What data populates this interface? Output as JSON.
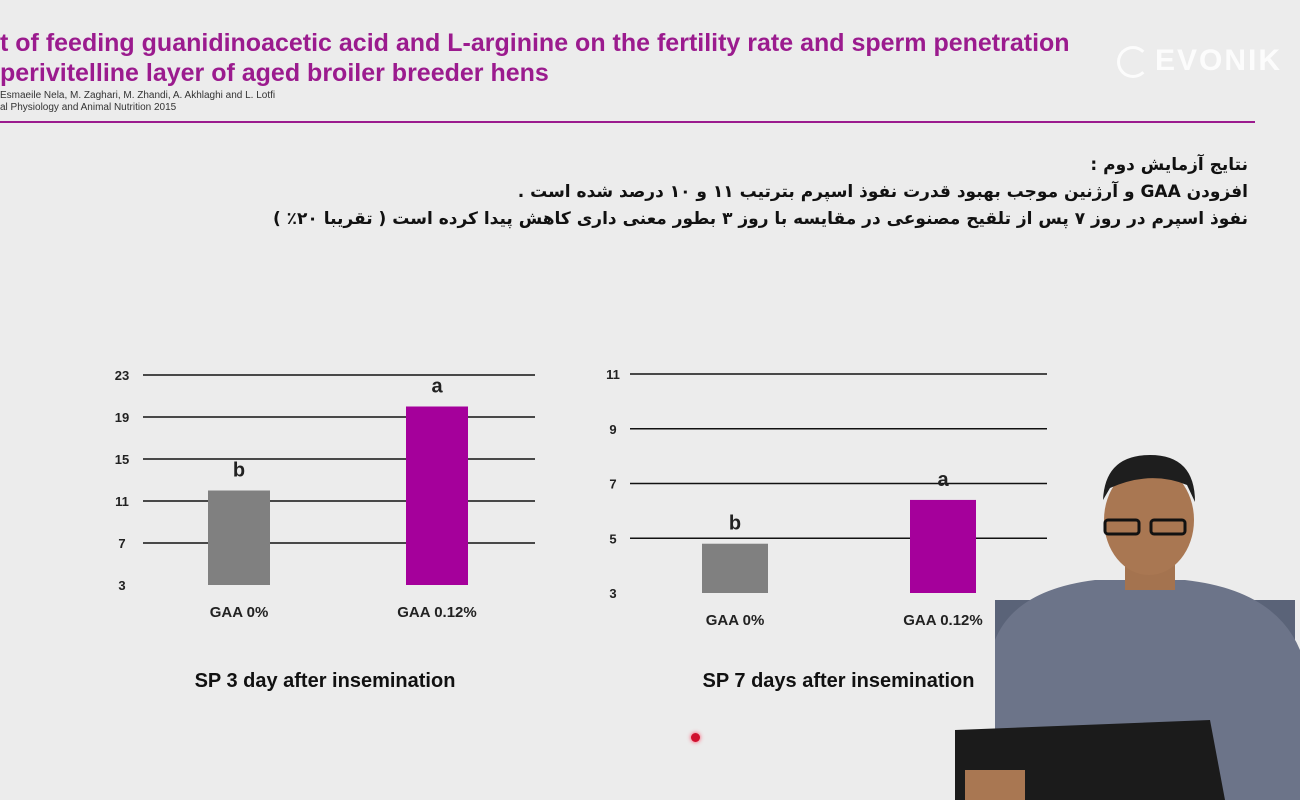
{
  "slide": {
    "title_line1": "t of feeding guanidinoacetic acid and L-arginine on the fertility rate and sperm penetration",
    "title_line2": "perivitelline layer of aged broiler breeder hens",
    "authors": "Esmaeile Nela, M. Zaghari, M. Zhandi, A. Akhlaghi and L. Lotfi",
    "journal": "al Physiology and Animal Nutrition 2015",
    "logo_text": "EVONIK",
    "persian_lines": [
      "نتایج آزمایش دوم :",
      "افزودن GAA و آرژنین موجب بهبود قدرت نفوذ اسپرم بترتیب ۱۱ و ۱۰ درصد شده است .",
      "نفوذ اسپرم  در روز ۷ پس از تلقیح مصنوعی در مقایسه با روز ۳ بطور معنی داری کاهش پیدا کرده است ( تقریبا ۲۰٪ )"
    ]
  },
  "colors": {
    "gray_bar": "#808080",
    "magenta_bar": "#a5009b",
    "title": "#9b1b8e"
  },
  "chart_data": [
    {
      "type": "bar",
      "title": "SP 3 day after insemination",
      "categories": [
        "GAA 0%",
        "GAA 0.12%"
      ],
      "values": [
        12,
        20
      ],
      "letters": [
        "b",
        "a"
      ],
      "ylim": [
        3,
        23
      ],
      "yticks": [
        3,
        7,
        11,
        15,
        19,
        23
      ],
      "grid": true
    },
    {
      "type": "bar",
      "title": "SP 7 days after insemination",
      "categories": [
        "GAA  0%",
        "GAA  0.12%"
      ],
      "values": [
        4.8,
        6.4
      ],
      "letters": [
        "b",
        "a"
      ],
      "ylim": [
        3,
        11
      ],
      "yticks": [
        3,
        5,
        7,
        9,
        11
      ],
      "grid": true
    }
  ]
}
